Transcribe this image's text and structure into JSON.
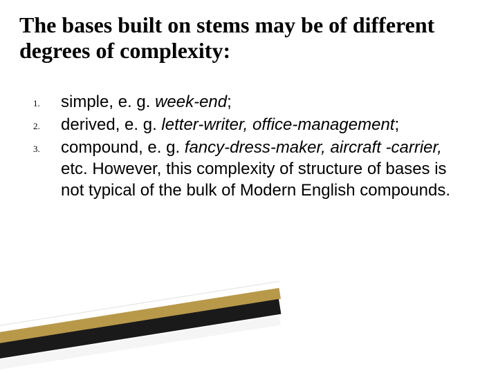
{
  "title": "The bases built on stems may be of different degrees of complexity:",
  "list": {
    "items": [
      {
        "number": "1.",
        "prefix": "simple, e. g. ",
        "italic": "week-end",
        "suffix": ";"
      },
      {
        "number": "2.",
        "prefix": "derived, e. g. ",
        "italic": "letter-writer, office-management",
        "suffix": ";"
      },
      {
        "number": "3.",
        "prefix": "compound, e. g. ",
        "italic": "fancy-dress-maker, aircraft -carrier,",
        "suffix": " etc. However, this complexity of structure of bases is not typical of the bulk of Modern English compounds."
      }
    ]
  },
  "styling": {
    "title_fontsize": 32,
    "body_fontsize": 24,
    "number_fontsize": 13,
    "title_color": "#000000",
    "body_color": "#000000",
    "background_color": "#ffffff",
    "stripe_gold": "#b8994a",
    "stripe_black": "#1a1a1a",
    "stripe_white": "#f5f5f5"
  }
}
